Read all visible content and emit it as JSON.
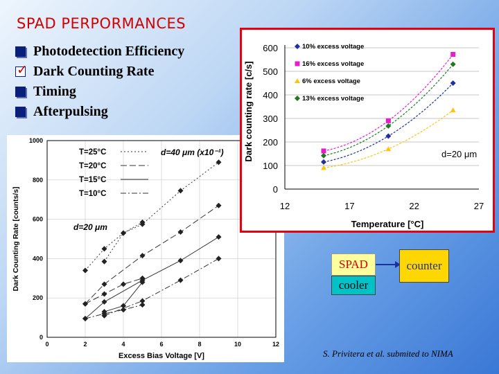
{
  "slide": {
    "title": "SPAD PERPORMANCES",
    "bullets": [
      {
        "label": "Photodetection Efficiency",
        "checked": false
      },
      {
        "label": "Dark Counting Rate",
        "checked": true
      },
      {
        "label": "Timing",
        "checked": false
      },
      {
        "label": "Afterpulsing",
        "checked": false
      }
    ],
    "diagram": {
      "spad": "SPAD",
      "counter": "counter",
      "cooler": "cooler"
    },
    "citation": "S. Privitera et al. submited to NIMA"
  },
  "colors": {
    "title": "#d40000",
    "frame": "#e8000f",
    "bullet": "#0a1f7a"
  },
  "chart_data": [
    {
      "type": "line",
      "xlabel": "Excess Bias Voltage [V]",
      "ylabel": "Dark Counting Rate [counts/s]",
      "xlim": [
        0,
        12
      ],
      "ylim": [
        0,
        1000
      ],
      "xticks": [
        0,
        2,
        4,
        6,
        8,
        10,
        12
      ],
      "yticks": [
        0,
        200,
        400,
        600,
        800,
        1000
      ],
      "annotations": [
        "d=40 μm (x10⁻¹)",
        "d=20 μm"
      ],
      "legend_position": "top-left",
      "series": [
        {
          "name": "T=25°C",
          "dash": "2,3",
          "group": "d40",
          "x": [
            2,
            3,
            4,
            5,
            7,
            9
          ],
          "y": [
            340,
            450,
            530,
            575,
            745,
            890
          ]
        },
        {
          "name": "T=20°C",
          "dash": "9,4",
          "group": "d40",
          "x": [
            2,
            3,
            5,
            7,
            9
          ],
          "y": [
            170,
            270,
            415,
            535,
            670
          ]
        },
        {
          "name": "T=15°C",
          "dash": "",
          "group": "d40",
          "x": [
            2,
            3,
            5,
            7,
            9
          ],
          "y": [
            95,
            180,
            290,
            390,
            510
          ]
        },
        {
          "name": "T=10°C",
          "dash": "8,3,2,3",
          "group": "d40",
          "x": [
            3,
            5,
            7,
            9
          ],
          "y": [
            110,
            185,
            290,
            400
          ]
        },
        {
          "name": "",
          "dash": "2,3",
          "group": "d20",
          "x": [
            3,
            4,
            5
          ],
          "y": [
            385,
            530,
            585
          ]
        },
        {
          "name": "",
          "dash": "9,4",
          "group": "d20",
          "x": [
            2,
            3,
            4,
            5
          ],
          "y": [
            170,
            220,
            270,
            300
          ]
        },
        {
          "name": "",
          "dash": "",
          "group": "d20",
          "x": [
            3,
            4,
            5
          ],
          "y": [
            130,
            160,
            280
          ]
        },
        {
          "name": "",
          "dash": "8,3,2,3",
          "group": "d20",
          "x": [
            2,
            3,
            4,
            5
          ],
          "y": [
            95,
            120,
            140,
            165
          ]
        }
      ]
    },
    {
      "type": "line",
      "xlabel": "Temperature [°C]",
      "ylabel": "Dark counting rate [c/s]",
      "xlim": [
        12,
        27
      ],
      "ylim": [
        0,
        600
      ],
      "xticks": [
        12,
        17,
        22,
        27
      ],
      "yticks": [
        0,
        100,
        200,
        300,
        400,
        500,
        600
      ],
      "annotation": "d=20 μm",
      "legend_position": "top-left",
      "series": [
        {
          "name": "10% excess voltage",
          "color": "#1f2f9f",
          "marker": "diamond",
          "x": [
            15,
            20,
            25
          ],
          "y": [
            115,
            225,
            450
          ]
        },
        {
          "name": "16% excess voltage",
          "color": "#e81ccf",
          "marker": "square",
          "x": [
            15,
            20,
            25
          ],
          "y": [
            162,
            290,
            572
          ]
        },
        {
          "name": "6% excess voltage",
          "color": "#ffc410",
          "marker": "triangle",
          "x": [
            15,
            20,
            25
          ],
          "y": [
            90,
            170,
            335
          ]
        },
        {
          "name": "13% excess voltage",
          "color": "#1f7a1f",
          "marker": "diamond",
          "x": [
            15,
            20,
            25
          ],
          "y": [
            142,
            268,
            530
          ]
        }
      ]
    }
  ]
}
